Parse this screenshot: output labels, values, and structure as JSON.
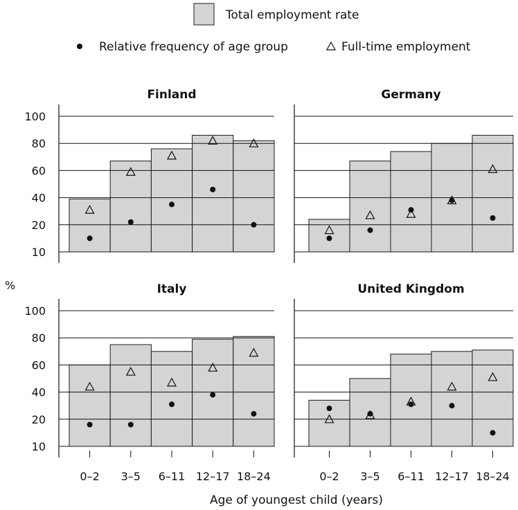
{
  "legend": {
    "total_label": "Total employment rate",
    "frequency_label": "Relative frequency of age group",
    "fulltime_label": "Full-time employment"
  },
  "y_axis_label": "%",
  "x_axis_label": "Age of youngest child (years)",
  "colors": {
    "bar_fill": "#d4d4d4",
    "bar_stroke": "#1a1a1a",
    "marker": "#111111",
    "gridline": "#111111"
  },
  "chart_data": [
    {
      "type": "bar",
      "title": "Finland",
      "categories": [
        "0–2",
        "3–5",
        "6–11",
        "12–17",
        "18–24"
      ],
      "series": [
        {
          "name": "Total employment rate",
          "values": [
            39,
            67,
            76,
            86,
            82
          ]
        },
        {
          "name": "Relative frequency of age group",
          "values": [
            15,
            22,
            35,
            46,
            20
          ]
        },
        {
          "name": "Full-time employment",
          "values": [
            31,
            59,
            71,
            82,
            80
          ]
        }
      ],
      "yticks": [
        10,
        20,
        40,
        60,
        80,
        100
      ],
      "ylim": [
        10,
        100
      ]
    },
    {
      "type": "bar",
      "title": "Germany",
      "categories": [
        "0–2",
        "3–5",
        "6–11",
        "12–17",
        "18–24"
      ],
      "series": [
        {
          "name": "Total employment rate",
          "values": [
            24,
            67,
            74,
            80,
            86
          ]
        },
        {
          "name": "Relative frequency of age group",
          "values": [
            15,
            18,
            31,
            38,
            25
          ]
        },
        {
          "name": "Full-time employment",
          "values": [
            18,
            27,
            28,
            38,
            61
          ]
        }
      ],
      "yticks": [
        10,
        20,
        40,
        60,
        80,
        100
      ],
      "ylim": [
        10,
        100
      ]
    },
    {
      "type": "bar",
      "title": "Italy",
      "categories": [
        "0–2",
        "3–5",
        "6–11",
        "12–17",
        "18–24"
      ],
      "series": [
        {
          "name": "Total employment rate",
          "values": [
            60,
            75,
            70,
            79,
            81
          ]
        },
        {
          "name": "Relative frequency of age group",
          "values": [
            18,
            18,
            31,
            38,
            24
          ]
        },
        {
          "name": "Full-time employment",
          "values": [
            44,
            55,
            47,
            58,
            69
          ]
        }
      ],
      "yticks": [
        10,
        20,
        40,
        60,
        80,
        100
      ],
      "ylim": [
        10,
        100
      ]
    },
    {
      "type": "bar",
      "title": "United Kingdom",
      "categories": [
        "0–2",
        "3–5",
        "6–11",
        "12–17",
        "18–24"
      ],
      "series": [
        {
          "name": "Total employment rate",
          "values": [
            34,
            50,
            68,
            70,
            71
          ]
        },
        {
          "name": "Relative frequency of age group",
          "values": [
            28,
            24,
            31,
            30,
            15
          ]
        },
        {
          "name": "Full-time employment",
          "values": [
            20,
            23,
            33,
            44,
            51
          ]
        }
      ],
      "yticks": [
        10,
        20,
        40,
        60,
        80,
        100
      ],
      "ylim": [
        10,
        100
      ]
    }
  ]
}
